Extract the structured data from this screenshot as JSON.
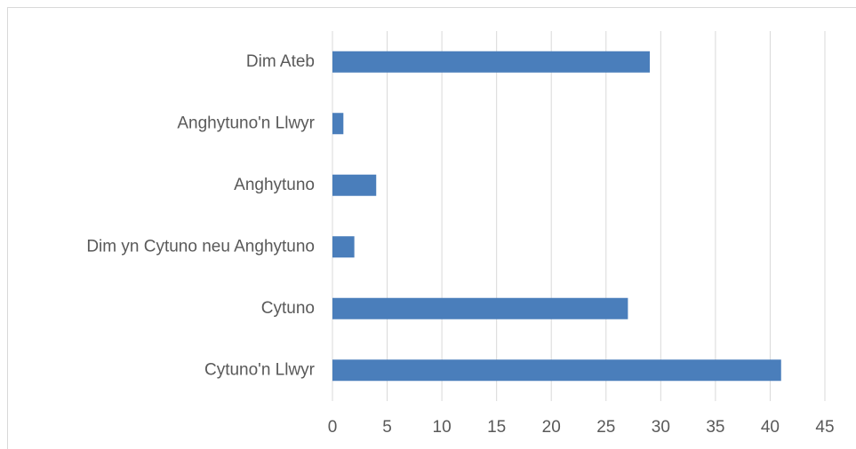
{
  "chart_data": {
    "type": "bar",
    "categories": [
      "Dim Ateb",
      "Anghytuno'n Llwyr",
      "Anghytuno",
      "Dim yn Cytuno neu Anghytuno",
      "Cytuno",
      "Cytuno'n Llwyr"
    ],
    "values": [
      29,
      1,
      4,
      2,
      27,
      41
    ],
    "color": "#4a7ebb",
    "xlim": [
      0,
      45
    ],
    "xticks": [
      0,
      5,
      10,
      15,
      20,
      25,
      30,
      35,
      40,
      45
    ],
    "grid": true
  }
}
